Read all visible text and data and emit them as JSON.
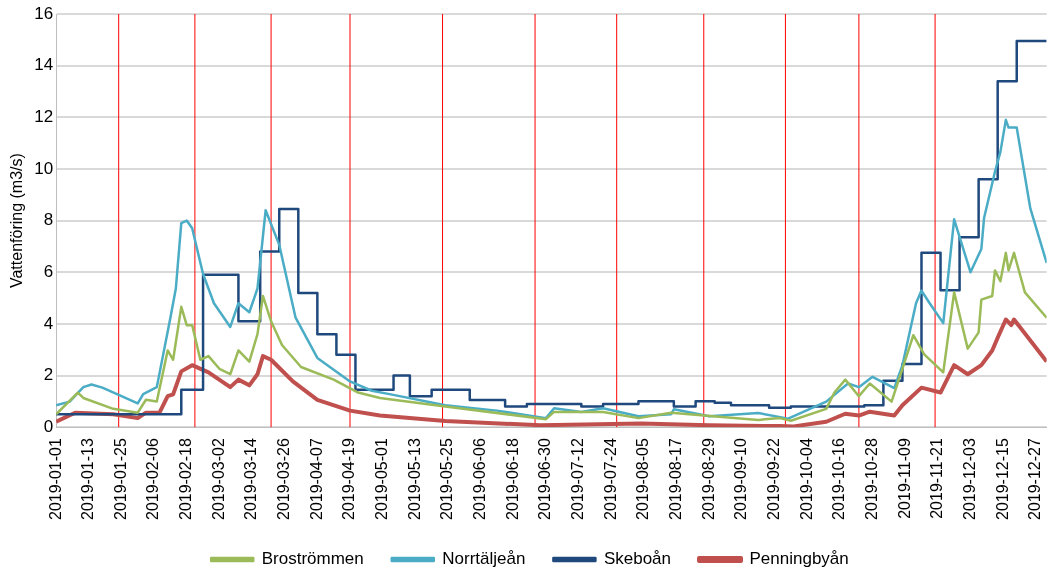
{
  "chart_data": {
    "type": "line",
    "ylabel": "Vattenföring (m3/s)",
    "xlim": [
      "2019-01-01",
      "2019-12-31"
    ],
    "ylim": [
      0,
      16
    ],
    "yticks": [
      0,
      2,
      4,
      6,
      8,
      10,
      12,
      14,
      16
    ],
    "xticks": [
      "2019-01-01",
      "2019-01-13",
      "2019-01-25",
      "2019-02-06",
      "2019-02-18",
      "2019-03-02",
      "2019-03-14",
      "2019-03-26",
      "2019-04-07",
      "2019-04-19",
      "2019-05-01",
      "2019-05-13",
      "2019-05-25",
      "2019-06-06",
      "2019-06-18",
      "2019-06-30",
      "2019-07-12",
      "2019-07-24",
      "2019-08-05",
      "2019-08-17",
      "2019-08-29",
      "2019-09-10",
      "2019-09-22",
      "2019-10-04",
      "2019-10-16",
      "2019-10-28",
      "2019-11-09",
      "2019-11-21",
      "2019-12-03",
      "2019-12-15",
      "2019-12-27"
    ],
    "grid": "y",
    "legend": "bottom",
    "marker": "none",
    "ref_lines": [
      {
        "axis": "x",
        "value": "2019-01-24",
        "color": "#ff0000"
      },
      {
        "axis": "x",
        "value": "2019-02-21",
        "color": "#ff0000"
      },
      {
        "axis": "x",
        "value": "2019-03-21",
        "color": "#ff0000"
      },
      {
        "axis": "x",
        "value": "2019-04-19",
        "color": "#ff0000"
      },
      {
        "axis": "x",
        "value": "2019-05-23",
        "color": "#ff0000"
      },
      {
        "axis": "x",
        "value": "2019-06-26",
        "color": "#ff0000"
      },
      {
        "axis": "x",
        "value": "2019-07-26",
        "color": "#ff0000"
      },
      {
        "axis": "x",
        "value": "2019-08-27",
        "color": "#ff0000"
      },
      {
        "axis": "x",
        "value": "2019-09-26",
        "color": "#ff0000"
      },
      {
        "axis": "x",
        "value": "2019-10-23",
        "color": "#ff0000"
      },
      {
        "axis": "x",
        "value": "2019-11-20",
        "color": "#ff0000"
      }
    ],
    "series": [
      {
        "name": "Broströmmen",
        "color": "#9bbb59",
        "x": [
          "2019-01-01",
          "2019-01-09",
          "2019-01-11",
          "2019-01-22",
          "2019-01-31",
          "2019-02-03",
          "2019-02-07",
          "2019-02-11",
          "2019-02-13",
          "2019-02-16",
          "2019-02-18",
          "2019-02-20",
          "2019-02-23",
          "2019-02-26",
          "2019-03-02",
          "2019-03-06",
          "2019-03-09",
          "2019-03-13",
          "2019-03-16",
          "2019-03-18",
          "2019-03-21",
          "2019-03-25",
          "2019-04-01",
          "2019-04-13",
          "2019-04-22",
          "2019-04-30",
          "2019-05-24",
          "2019-06-30",
          "2019-07-03",
          "2019-07-21",
          "2019-08-03",
          "2019-08-15",
          "2019-09-16",
          "2019-09-24",
          "2019-09-28",
          "2019-10-11",
          "2019-10-14",
          "2019-10-18",
          "2019-10-23",
          "2019-10-27",
          "2019-11-04",
          "2019-11-08",
          "2019-11-12",
          "2019-11-16",
          "2019-11-23",
          "2019-11-27",
          "2019-12-02",
          "2019-12-06",
          "2019-12-07",
          "2019-12-11",
          "2019-12-12",
          "2019-12-14",
          "2019-12-16",
          "2019-12-17",
          "2019-12-19",
          "2019-12-23",
          "2019-12-31"
        ],
        "values": [
          0.5,
          1.34,
          1.13,
          0.71,
          0.56,
          1.06,
          0.99,
          2.97,
          2.61,
          4.66,
          3.95,
          3.95,
          2.61,
          2.75,
          2.26,
          2.05,
          2.97,
          2.54,
          3.6,
          5.08,
          4.1,
          3.18,
          2.33,
          1.84,
          1.34,
          1.13,
          0.8,
          0.31,
          0.59,
          0.59,
          0.35,
          0.56,
          0.28,
          0.35,
          0.25,
          0.71,
          1.34,
          1.84,
          1.2,
          1.69,
          0.99,
          2.26,
          3.56,
          2.82,
          2.12,
          5.22,
          3.04,
          3.67,
          4.94,
          5.08,
          6.07,
          5.65,
          6.75,
          6.07,
          6.75,
          5.22,
          4.24
        ]
      },
      {
        "name": "Norrtäljeån",
        "color": "#4bacc6",
        "x": [
          "2019-01-01",
          "2019-01-06",
          "2019-01-11",
          "2019-01-14",
          "2019-01-18",
          "2019-01-31",
          "2019-02-02",
          "2019-02-07",
          "2019-02-12",
          "2019-02-14",
          "2019-02-16",
          "2019-02-18",
          "2019-02-20",
          "2019-02-24",
          "2019-02-28",
          "2019-03-06",
          "2019-03-09",
          "2019-03-13",
          "2019-03-16",
          "2019-03-19",
          "2019-03-24",
          "2019-03-30",
          "2019-04-07",
          "2019-04-19",
          "2019-04-27",
          "2019-05-04",
          "2019-05-24",
          "2019-06-12",
          "2019-06-30",
          "2019-07-03",
          "2019-07-13",
          "2019-07-21",
          "2019-08-03",
          "2019-08-15",
          "2019-08-16",
          "2019-08-29",
          "2019-09-16",
          "2019-09-27",
          "2019-10-11",
          "2019-10-19",
          "2019-10-23",
          "2019-10-28",
          "2019-11-05",
          "2019-11-08",
          "2019-11-13",
          "2019-11-15",
          "2019-11-18",
          "2019-11-23",
          "2019-11-27",
          "2019-12-03",
          "2019-12-07",
          "2019-12-08",
          "2019-12-12",
          "2019-12-14",
          "2019-12-16",
          "2019-12-17",
          "2019-12-20",
          "2019-12-25",
          "2019-12-31"
        ],
        "values": [
          0.85,
          0.99,
          1.55,
          1.65,
          1.53,
          0.92,
          1.28,
          1.55,
          4.24,
          5.37,
          7.9,
          8.0,
          7.7,
          5.93,
          4.8,
          3.88,
          4.8,
          4.45,
          5.37,
          8.4,
          7.06,
          4.24,
          2.68,
          1.77,
          1.41,
          1.27,
          0.85,
          0.64,
          0.35,
          0.73,
          0.59,
          0.73,
          0.42,
          0.5,
          0.69,
          0.42,
          0.55,
          0.33,
          0.99,
          1.69,
          1.55,
          1.95,
          1.51,
          2.4,
          4.8,
          5.29,
          4.8,
          4.03,
          8.05,
          6.0,
          6.9,
          8.1,
          9.89,
          10.66,
          11.9,
          11.6,
          11.6,
          8.47,
          6.36
        ]
      },
      {
        "name": "Skeboån",
        "color": "#1f497d",
        "type": "step",
        "x": [
          "2019-01-01",
          "2019-02-16",
          "2019-02-24",
          "2019-03-09",
          "2019-03-17",
          "2019-03-24",
          "2019-03-31",
          "2019-04-07",
          "2019-04-14",
          "2019-04-21",
          "2019-05-05",
          "2019-05-11",
          "2019-05-19",
          "2019-06-02",
          "2019-06-15",
          "2019-06-23",
          "2019-07-13",
          "2019-07-21",
          "2019-08-03",
          "2019-08-16",
          "2019-08-24",
          "2019-08-31",
          "2019-09-06",
          "2019-09-20",
          "2019-09-28",
          "2019-10-25",
          "2019-11-01",
          "2019-11-08",
          "2019-11-15",
          "2019-11-22",
          "2019-11-29",
          "2019-12-06",
          "2019-12-13",
          "2019-12-20",
          "2019-12-31"
        ],
        "values": [
          0.5,
          1.45,
          5.9,
          4.1,
          6.8,
          8.45,
          5.2,
          3.6,
          2.8,
          1.45,
          2.0,
          1.2,
          1.45,
          1.05,
          0.8,
          0.9,
          0.8,
          0.9,
          1.0,
          0.8,
          1.0,
          0.95,
          0.85,
          0.75,
          0.8,
          0.85,
          1.8,
          2.45,
          6.75,
          5.3,
          7.35,
          9.6,
          13.4,
          14.95,
          14.95
        ]
      },
      {
        "name": "Penningbyån",
        "color": "#c0504d",
        "x": [
          "2019-01-01",
          "2019-01-08",
          "2019-01-22",
          "2019-01-31",
          "2019-02-03",
          "2019-02-08",
          "2019-02-11",
          "2019-02-13",
          "2019-02-16",
          "2019-02-20",
          "2019-02-26",
          "2019-03-06",
          "2019-03-09",
          "2019-03-13",
          "2019-03-16",
          "2019-03-18",
          "2019-03-21",
          "2019-03-29",
          "2019-04-07",
          "2019-04-19",
          "2019-04-30",
          "2019-05-24",
          "2019-06-28",
          "2019-08-04",
          "2019-08-29",
          "2019-09-24",
          "2019-09-29",
          "2019-10-11",
          "2019-10-18",
          "2019-10-23",
          "2019-10-27",
          "2019-11-05",
          "2019-11-08",
          "2019-11-15",
          "2019-11-22",
          "2019-11-27",
          "2019-12-02",
          "2019-12-07",
          "2019-12-11",
          "2019-12-13",
          "2019-12-16",
          "2019-12-18",
          "2019-12-19",
          "2019-12-31"
        ],
        "values": [
          0.21,
          0.56,
          0.5,
          0.35,
          0.56,
          0.56,
          1.2,
          1.27,
          2.16,
          2.4,
          2.12,
          1.55,
          1.84,
          1.62,
          2.05,
          2.75,
          2.61,
          1.77,
          1.06,
          0.64,
          0.45,
          0.24,
          0.07,
          0.14,
          0.07,
          0.04,
          0.03,
          0.21,
          0.52,
          0.45,
          0.6,
          0.45,
          0.85,
          1.53,
          1.34,
          2.4,
          2.05,
          2.4,
          2.97,
          3.46,
          4.17,
          3.95,
          4.17,
          2.54
        ]
      }
    ]
  }
}
